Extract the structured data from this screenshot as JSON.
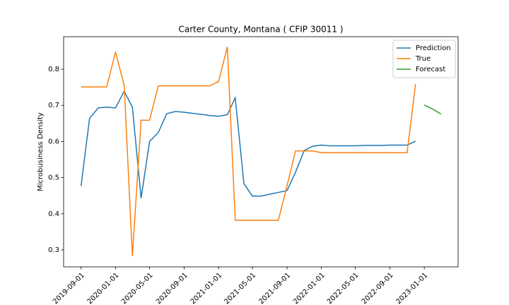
{
  "chart_data": {
    "type": "line",
    "title": "Carter County, Montana ( CFIP 30011 )",
    "y_label": "Microbusiness Density",
    "x": [
      "2019-09-01",
      "2019-10-01",
      "2019-11-01",
      "2019-12-01",
      "2020-01-01",
      "2020-02-01",
      "2020-03-01",
      "2020-04-01",
      "2020-05-01",
      "2020-06-01",
      "2020-07-01",
      "2020-08-01",
      "2020-09-01",
      "2020-10-01",
      "2020-11-01",
      "2020-12-01",
      "2021-01-01",
      "2021-02-01",
      "2021-03-01",
      "2021-04-01",
      "2021-05-01",
      "2021-06-01",
      "2021-07-01",
      "2021-08-01",
      "2021-09-01",
      "2021-10-01",
      "2021-11-01",
      "2021-12-01",
      "2022-01-01",
      "2022-02-01",
      "2022-03-01",
      "2022-04-01",
      "2022-05-01",
      "2022-06-01",
      "2022-07-01",
      "2022-08-01",
      "2022-09-01",
      "2022-10-01",
      "2022-11-01",
      "2022-12-01",
      "2023-01-01",
      "2023-02-01",
      "2023-03-01"
    ],
    "series": [
      {
        "name": "Prediction",
        "color": "#1f77b4",
        "values": [
          0.477,
          0.664,
          0.693,
          0.695,
          0.693,
          0.739,
          0.695,
          0.443,
          0.6,
          0.625,
          0.677,
          0.683,
          0.681,
          0.678,
          0.675,
          0.672,
          0.67,
          0.674,
          0.721,
          0.483,
          0.449,
          0.449,
          0.454,
          0.459,
          0.464,
          0.515,
          0.575,
          0.587,
          0.59,
          0.588,
          0.588,
          0.588,
          0.588,
          0.589,
          0.589,
          0.589,
          0.59,
          0.59,
          0.59,
          0.601,
          null,
          null,
          null
        ]
      },
      {
        "name": "True",
        "color": "#ff7f0e",
        "values": [
          0.751,
          0.751,
          0.751,
          0.751,
          0.848,
          0.755,
          0.283,
          0.659,
          0.659,
          0.754,
          0.754,
          0.754,
          0.754,
          0.754,
          0.754,
          0.754,
          0.766,
          0.862,
          0.382,
          0.382,
          0.382,
          0.382,
          0.382,
          0.382,
          0.478,
          0.574,
          0.574,
          0.574,
          0.569,
          0.569,
          0.569,
          0.569,
          0.569,
          0.569,
          0.569,
          0.569,
          0.569,
          0.569,
          0.569,
          0.759,
          null,
          null,
          null
        ]
      },
      {
        "name": "Forecast",
        "color": "#2ca02c",
        "values": [
          null,
          null,
          null,
          null,
          null,
          null,
          null,
          null,
          null,
          null,
          null,
          null,
          null,
          null,
          null,
          null,
          null,
          null,
          null,
          null,
          null,
          null,
          null,
          null,
          null,
          null,
          null,
          null,
          null,
          null,
          null,
          null,
          null,
          null,
          null,
          null,
          null,
          null,
          null,
          null,
          0.701,
          0.689,
          0.676
        ]
      }
    ],
    "xlim": [
      "2019-07-01",
      "2023-05-01"
    ],
    "xticks": [
      "2019-09-01",
      "2020-01-01",
      "2020-05-01",
      "2020-09-01",
      "2021-01-01",
      "2021-05-01",
      "2021-09-01",
      "2022-01-01",
      "2022-05-01",
      "2022-09-01",
      "2023-01-01"
    ],
    "ylim": [
      0.253,
      0.89
    ],
    "yticks": [
      0.3,
      0.4,
      0.5,
      0.6,
      0.7,
      0.8
    ],
    "legend": "upper right"
  }
}
